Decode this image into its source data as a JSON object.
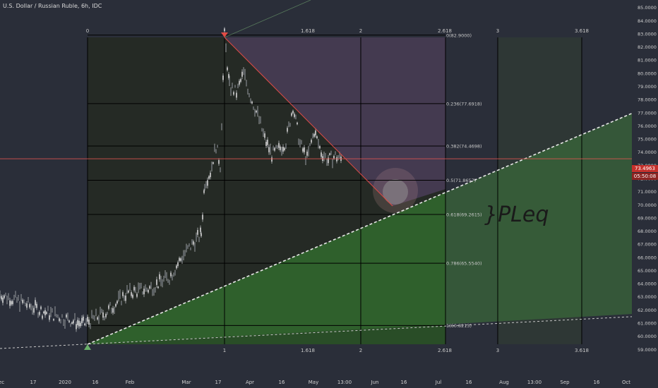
{
  "header": {
    "title": "U.S. Dollar / Russian Ruble, 6h, IDC"
  },
  "price_tags": {
    "current": "73.4963",
    "countdown": "05:50:08"
  },
  "colors": {
    "background": "#2a2e39",
    "grid": "#000000",
    "red_line": "#e04b45",
    "candle": "#b9bcc0",
    "purple_zone": "#6b4e85",
    "green_zone": "#3e7a3a"
  },
  "chart_data": {
    "type": "line",
    "title": "U.S. Dollar / Russian Ruble, 6h, IDC",
    "y_ticks": [
      "85.0000",
      "84.0000",
      "83.0000",
      "82.0000",
      "81.0000",
      "80.0000",
      "79.0000",
      "78.0000",
      "77.0000",
      "76.0000",
      "75.0000",
      "74.0000",
      "73.0000",
      "72.0000",
      "71.0000",
      "70.0000",
      "69.0000",
      "68.0000",
      "67.0000",
      "66.0000",
      "65.0000",
      "64.0000",
      "63.0000",
      "62.0000",
      "61.0000",
      "60.0000",
      "59.0000"
    ],
    "x_ticks": [
      "ec",
      "17",
      "2020",
      "16",
      "Feb",
      "Mar",
      "17",
      "Apr",
      "16",
      "May",
      "13:00",
      "Jun",
      "16",
      "Jul",
      "16",
      "Aug",
      "13:00",
      "Sep",
      "16",
      "Oct"
    ],
    "ylim": [
      58.5,
      85.5
    ],
    "current_price": 73.4963,
    "fib_levels": [
      {
        "ratio": 0,
        "value": 82.9,
        "label": "0(82.9000)"
      },
      {
        "ratio": 0.236,
        "value": 77.6918,
        "label": "0.236(77.6918)"
      },
      {
        "ratio": 0.382,
        "value": 74.4698,
        "label": "0.382(74.4698)"
      },
      {
        "ratio": 0.5,
        "value": 71.8657,
        "label": "0.5(71.8657)"
      },
      {
        "ratio": 0.618,
        "value": 69.2615,
        "label": "0.618(69.2615)"
      },
      {
        "ratio": 0.786,
        "value": 65.554,
        "label": "0.786(65.5540)"
      },
      {
        "ratio": 1,
        "value": 60.8213,
        "label": "1(60.8213)"
      }
    ],
    "time_fib_top": [
      "0",
      "1.618",
      "2",
      "2.618",
      "3",
      "3.618"
    ],
    "time_fib_bottom": [
      "1",
      "1.618",
      "2",
      "2.618",
      "3",
      "3.618"
    ],
    "annotation": "}PLeq"
  }
}
